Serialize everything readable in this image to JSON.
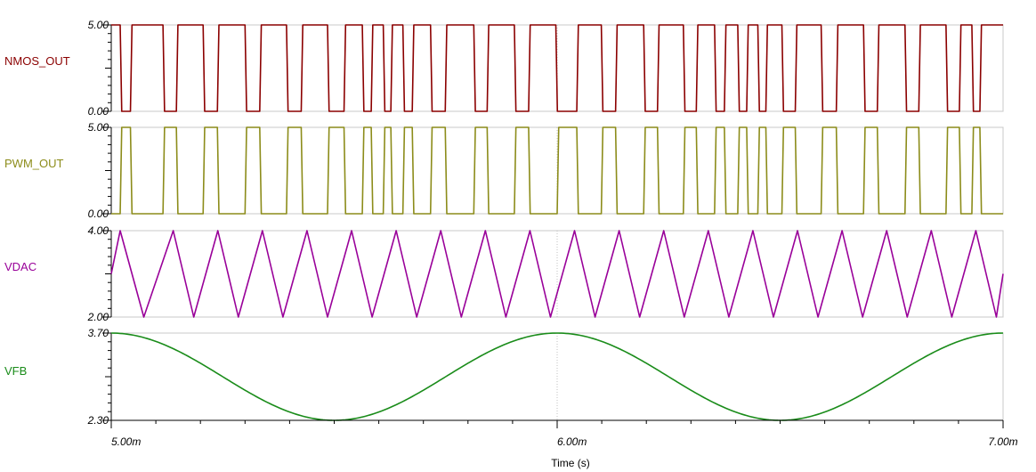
{
  "chart_data": {
    "type": "line",
    "title": "",
    "xlabel": "Time (s)",
    "x_range": [
      0.005,
      0.007
    ],
    "x_ticks": [
      {
        "value": 0.005,
        "label": "5.00m"
      },
      {
        "value": 0.006,
        "label": "6.00m"
      },
      {
        "value": 0.007,
        "label": "7.00m"
      }
    ],
    "grid": "dotted vertical line at 6.00m",
    "panels": [
      {
        "name": "NMOS_OUT",
        "color": "#8b0000",
        "ylim": [
          0,
          5
        ],
        "y_tick_labels": [
          "5.00",
          "0.00"
        ],
        "kind": "digital",
        "low": 0,
        "high": 5,
        "high_intervals": [
          [
            0.005,
            0.00502
          ],
          [
            0.005043,
            0.005116
          ],
          [
            0.005146,
            0.005206
          ],
          [
            0.005238,
            0.0053
          ],
          [
            0.005333,
            0.005393
          ],
          [
            0.005426,
            0.005485
          ],
          [
            0.005522,
            0.005563
          ],
          [
            0.005583,
            0.00561
          ],
          [
            0.005627,
            0.005654
          ],
          [
            0.005675,
            0.005716
          ],
          [
            0.005749,
            0.005813
          ],
          [
            0.005843,
            0.005904
          ],
          [
            0.005936,
            0.005997
          ],
          [
            0.006044,
            0.006099
          ],
          [
            0.006131,
            0.006194
          ],
          [
            0.006225,
            0.006283
          ],
          [
            0.006312,
            0.006353
          ],
          [
            0.006375,
            0.006405
          ],
          [
            0.006425,
            0.00645
          ],
          [
            0.006468,
            0.006504
          ],
          [
            0.006534,
            0.006592
          ],
          [
            0.006626,
            0.006687
          ],
          [
            0.006718,
            0.00678
          ],
          [
            0.006811,
            0.006872
          ],
          [
            0.006902,
            0.00693
          ],
          [
            0.006948,
            0.007
          ]
        ]
      },
      {
        "name": "PWM_OUT",
        "color": "#8c8c1a",
        "ylim": [
          0,
          5
        ],
        "y_tick_labels": [
          "5.00",
          "0.00"
        ],
        "kind": "digital",
        "low": 0,
        "high": 5,
        "high_intervals": [
          [
            0.00502,
            0.005043
          ],
          [
            0.005116,
            0.005146
          ],
          [
            0.005206,
            0.005238
          ],
          [
            0.0053,
            0.005333
          ],
          [
            0.005393,
            0.005426
          ],
          [
            0.005485,
            0.005522
          ],
          [
            0.005563,
            0.005583
          ],
          [
            0.00561,
            0.005627
          ],
          [
            0.005654,
            0.005675
          ],
          [
            0.005716,
            0.005749
          ],
          [
            0.005813,
            0.005843
          ],
          [
            0.005904,
            0.005936
          ],
          [
            0.006,
            0.006044
          ],
          [
            0.006099,
            0.006131
          ],
          [
            0.006194,
            0.006225
          ],
          [
            0.006283,
            0.006312
          ],
          [
            0.006353,
            0.006375
          ],
          [
            0.006405,
            0.006425
          ],
          [
            0.00645,
            0.006468
          ],
          [
            0.006504,
            0.006534
          ],
          [
            0.006592,
            0.006626
          ],
          [
            0.006687,
            0.006718
          ],
          [
            0.00678,
            0.006811
          ],
          [
            0.006872,
            0.006902
          ],
          [
            0.00693,
            0.006948
          ]
        ]
      },
      {
        "name": "VDAC",
        "color": "#990099",
        "ylim": [
          2,
          4
        ],
        "y_tick_labels": [
          "4.00",
          "2.00"
        ],
        "kind": "triangle",
        "x": [
          0.005,
          0.00502,
          0.005073,
          0.005139,
          0.005185,
          0.005239,
          0.005285,
          0.005339,
          0.005385,
          0.005439,
          0.005485,
          0.005539,
          0.005585,
          0.005639,
          0.005685,
          0.005739,
          0.005785,
          0.005839,
          0.005885,
          0.005939,
          0.005985,
          0.006039,
          0.006085,
          0.006139,
          0.006185,
          0.006239,
          0.006285,
          0.006339,
          0.006385,
          0.006439,
          0.006485,
          0.006539,
          0.006585,
          0.006639,
          0.006685,
          0.006739,
          0.006785,
          0.006839,
          0.006885,
          0.006939,
          0.006985,
          0.007
        ],
        "y": [
          3.0,
          4.0,
          2.0,
          4.0,
          2.0,
          4.0,
          2.0,
          4.0,
          2.0,
          4.0,
          2.0,
          4.0,
          2.0,
          4.0,
          2.0,
          4.0,
          2.0,
          4.0,
          2.0,
          4.0,
          2.0,
          4.0,
          2.0,
          4.0,
          2.0,
          4.0,
          2.0,
          4.0,
          2.0,
          4.0,
          2.0,
          4.0,
          2.0,
          4.0,
          2.0,
          4.0,
          2.0,
          4.0,
          2.0,
          4.0,
          2.0,
          3.0
        ]
      },
      {
        "name": "VFB",
        "color": "#1a8c1a",
        "ylim": [
          2.3,
          3.7
        ],
        "y_tick_labels": [
          "3.70",
          "2.30"
        ],
        "kind": "cosine",
        "offset": 3.0,
        "amplitude": 0.7,
        "period": 0.001,
        "phase_at": 0.005
      }
    ]
  }
}
